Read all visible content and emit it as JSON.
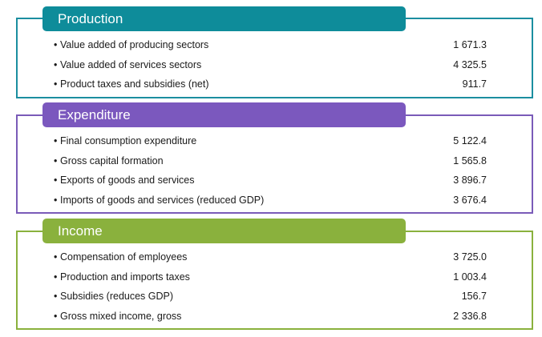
{
  "sections": [
    {
      "title": "Production",
      "rows": [
        {
          "label": "Value added of producing sectors",
          "value": "1 671.3"
        },
        {
          "label": "Value added of services sectors",
          "value": "4 325.5"
        },
        {
          "label": "Product taxes and subsidies (net)",
          "value": "911.7"
        }
      ]
    },
    {
      "title": "Expenditure",
      "rows": [
        {
          "label": "Final consumption expenditure",
          "value": "5 122.4"
        },
        {
          "label": "Gross capital formation",
          "value": "1 565.8"
        },
        {
          "label": "Exports of goods and services",
          "value": "3 896.7"
        },
        {
          "label": "Imports of goods and services (reduced GDP)",
          "value": "3 676.4"
        }
      ]
    },
    {
      "title": "Income",
      "rows": [
        {
          "label": "Compensation of employees",
          "value": "3 725.0"
        },
        {
          "label": "Production and imports taxes",
          "value": "1 003.4"
        },
        {
          "label": "Subsidies (reduces GDP)",
          "value": "156.7"
        },
        {
          "label": "Gross mixed income, gross",
          "value": "2 336.8"
        }
      ]
    }
  ],
  "colors": {
    "production": "#0e8c9a",
    "expenditure": "#7b58be",
    "income": "#8ab13d"
  },
  "bullet": "•"
}
